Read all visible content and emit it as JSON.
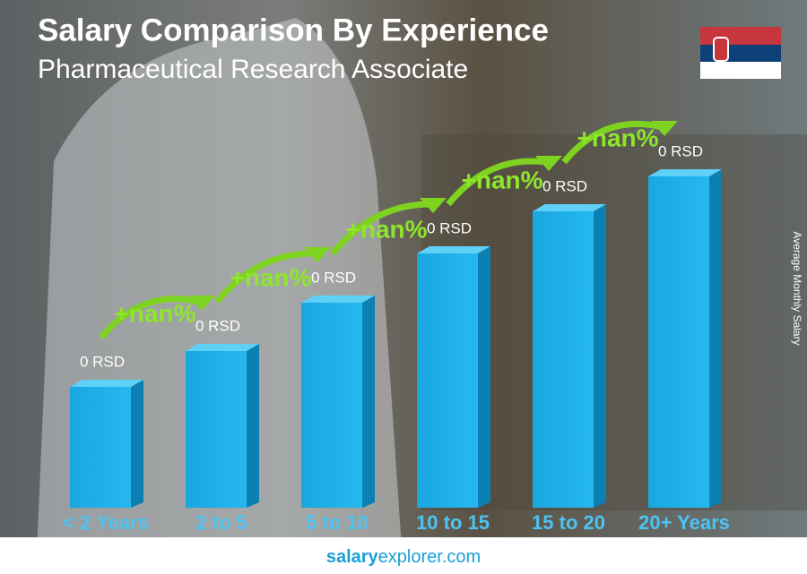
{
  "header": {
    "title": "Salary Comparison By Experience",
    "subtitle": "Pharmaceutical Research Associate"
  },
  "axis_label": "Average Monthly Salary",
  "bars": [
    {
      "category": "< 2 Years",
      "value_label": "0 RSD"
    },
    {
      "category": "2 to 5",
      "value_label": "0 RSD",
      "change": "+nan%"
    },
    {
      "category": "5 to 10",
      "value_label": "0 RSD",
      "change": "+nan%"
    },
    {
      "category": "10 to 15",
      "value_label": "0 RSD",
      "change": "+nan%"
    },
    {
      "category": "15 to 20",
      "value_label": "0 RSD",
      "change": "+nan%"
    },
    {
      "category": "20+ Years",
      "value_label": "0 RSD",
      "change": "+nan%"
    }
  ],
  "footer": {
    "brand": "salary",
    "rest": "explorer.com"
  }
}
